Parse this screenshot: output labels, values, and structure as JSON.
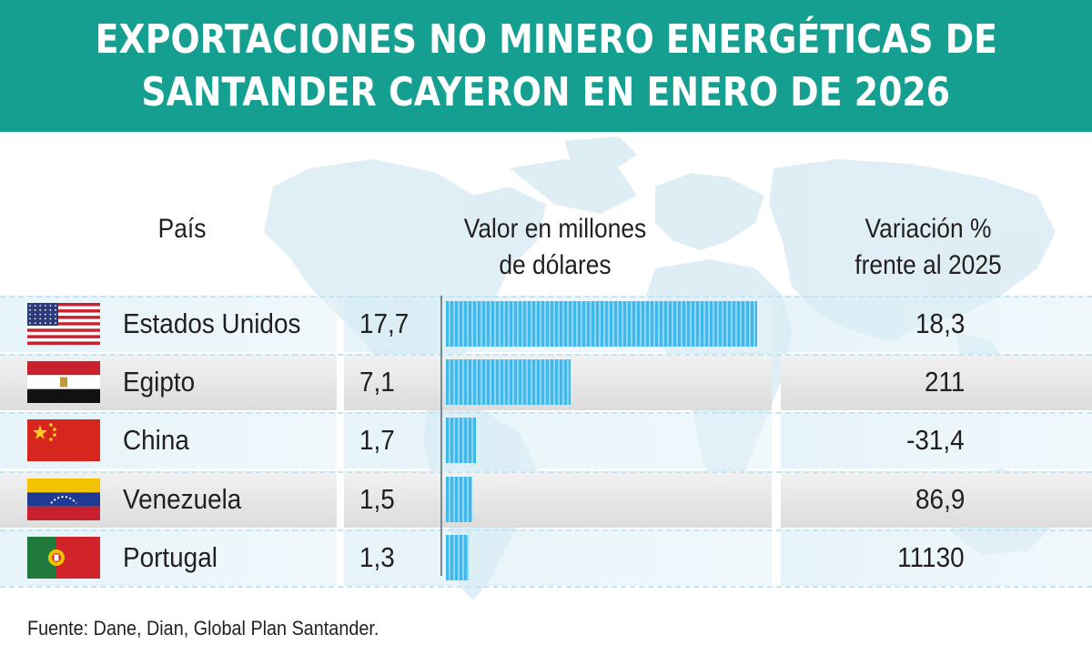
{
  "title_lines": [
    "EXPORTACIONES NO MINERO ENERGÉTICAS DE",
    "SANTANDER CAYERON EN ENERO DE 2026"
  ],
  "headers": {
    "country": "País",
    "value_line1": "Valor en millones",
    "value_line2": "de dólares",
    "variation_line1": "Variación %",
    "variation_line2": "frente al 2025"
  },
  "source": "Fuente: Dane, Dian, Global Plan Santander.",
  "colors": {
    "banner": "#149f90",
    "bar": "#3fb8ec"
  },
  "chart_data": {
    "type": "bar",
    "orientation": "horizontal",
    "categories": [
      "Estados Unidos",
      "Egipto",
      "China",
      "Venezuela",
      "Portugal"
    ],
    "values": [
      17.7,
      7.1,
      1.7,
      1.5,
      1.3
    ],
    "value_labels": [
      "17,7",
      "7,1",
      "1,7",
      "1,5",
      "1,3"
    ],
    "variation_labels": [
      "18,3",
      "211",
      "-31,4",
      "86,9",
      "11130"
    ],
    "flags": [
      "usa-flag-icon",
      "egypt-flag-icon",
      "china-flag-icon",
      "venezuela-flag-icon",
      "portugal-flag-icon"
    ]
  }
}
